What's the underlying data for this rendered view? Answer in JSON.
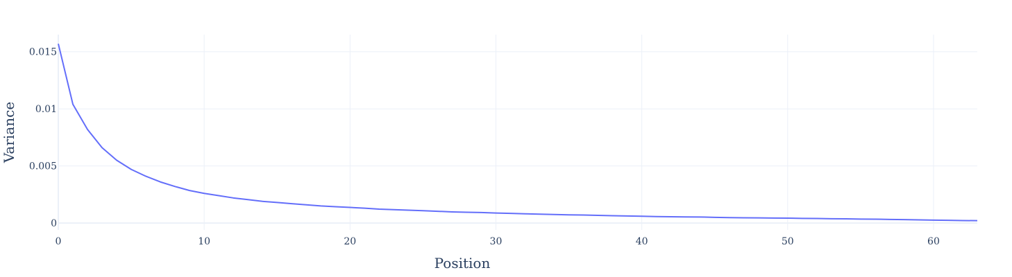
{
  "chart_data": {
    "type": "line",
    "title": "",
    "xlabel": "Position",
    "ylabel": "Variance",
    "xlim": [
      0,
      63
    ],
    "ylim": [
      -0.0006,
      0.0165
    ],
    "x_ticks": [
      0,
      10,
      20,
      30,
      40,
      50,
      60
    ],
    "x_tick_labels": [
      "0",
      "10",
      "20",
      "30",
      "40",
      "50",
      "60"
    ],
    "y_ticks": [
      0,
      0.005,
      0.01,
      0.015
    ],
    "y_tick_labels": [
      "0",
      "0.005",
      "0.01",
      "0.015"
    ],
    "grid": true,
    "legend": "none",
    "series": [
      {
        "color": "#636efa",
        "x": [
          0,
          1,
          2,
          3,
          4,
          5,
          6,
          7,
          8,
          9,
          10,
          11,
          12,
          13,
          14,
          15,
          16,
          17,
          18,
          19,
          20,
          21,
          22,
          23,
          24,
          25,
          26,
          27,
          28,
          29,
          30,
          31,
          32,
          33,
          34,
          35,
          36,
          37,
          38,
          39,
          40,
          41,
          42,
          43,
          44,
          45,
          46,
          47,
          48,
          49,
          50,
          51,
          52,
          53,
          54,
          55,
          56,
          57,
          58,
          59,
          60,
          61,
          62,
          63
        ],
        "y": [
          0.0157,
          0.0104,
          0.0082,
          0.0066,
          0.0055,
          0.0047,
          0.0041,
          0.0036,
          0.0032,
          0.00285,
          0.0026,
          0.0024,
          0.0022,
          0.00205,
          0.0019,
          0.0018,
          0.0017,
          0.0016,
          0.0015,
          0.00143,
          0.00137,
          0.0013,
          0.00122,
          0.00117,
          0.00113,
          0.00108,
          0.00103,
          0.00098,
          0.00095,
          0.00092,
          0.00088,
          0.00085,
          0.00081,
          0.00078,
          0.00075,
          0.00072,
          0.0007,
          0.00067,
          0.00064,
          0.00062,
          0.0006,
          0.00057,
          0.00055,
          0.00054,
          0.00053,
          0.0005,
          0.00048,
          0.00046,
          0.00045,
          0.00044,
          0.00043,
          0.00041,
          0.0004,
          0.00038,
          0.00037,
          0.00035,
          0.00034,
          0.00032,
          0.0003,
          0.00028,
          0.00026,
          0.00024,
          0.00022,
          0.00021
        ]
      }
    ]
  }
}
